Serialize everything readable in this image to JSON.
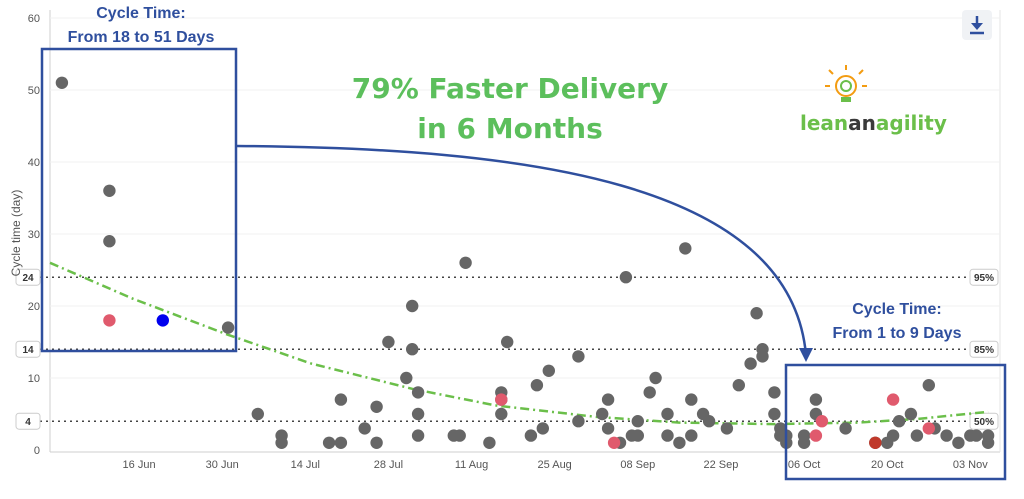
{
  "chart_data": {
    "type": "scatter",
    "ylabel": "Cycle time (day)",
    "ylim": [
      0,
      60
    ],
    "y_ticks": [
      "0",
      "10",
      "20",
      "30",
      "40",
      "50",
      "60"
    ],
    "x_ticks": [
      "16 Jun",
      "30 Jun",
      "14 Jul",
      "28 Jul",
      "11 Aug",
      "25 Aug",
      "08 Sep",
      "22 Sep",
      "06 Oct",
      "20 Oct",
      "03 Nov"
    ],
    "x_tick_dates": [
      "2023-06-16",
      "2023-06-30",
      "2023-07-14",
      "2023-07-28",
      "2023-08-11",
      "2023-08-25",
      "2023-09-08",
      "2023-09-22",
      "2023-10-06",
      "2023-10-20",
      "2023-11-03"
    ],
    "xlim": [
      "2023-06-01",
      "2023-11-08"
    ],
    "percentiles": [
      {
        "label": "95%",
        "value": 24,
        "badge": "24"
      },
      {
        "label": "85%",
        "value": 14,
        "badge": "14"
      },
      {
        "label": "50%",
        "value": 4,
        "badge": "4"
      }
    ],
    "series": [
      {
        "color": "#666666",
        "points": [
          [
            "2023-06-03",
            51
          ],
          [
            "2023-06-11",
            36
          ],
          [
            "2023-06-11",
            29
          ],
          [
            "2023-07-01",
            17
          ],
          [
            "2023-07-06",
            5
          ],
          [
            "2023-07-10",
            2
          ],
          [
            "2023-07-10",
            1
          ],
          [
            "2023-07-18",
            1
          ],
          [
            "2023-07-20",
            1
          ],
          [
            "2023-07-20",
            7
          ],
          [
            "2023-07-24",
            3
          ],
          [
            "2023-07-26",
            1
          ],
          [
            "2023-07-26",
            6
          ],
          [
            "2023-07-28",
            15
          ],
          [
            "2023-07-31",
            10
          ],
          [
            "2023-08-01",
            20
          ],
          [
            "2023-08-01",
            14
          ],
          [
            "2023-08-02",
            8
          ],
          [
            "2023-08-02",
            5
          ],
          [
            "2023-08-02",
            2
          ],
          [
            "2023-08-08",
            2
          ],
          [
            "2023-08-09",
            2
          ],
          [
            "2023-08-10",
            26
          ],
          [
            "2023-08-14",
            1
          ],
          [
            "2023-08-16",
            8
          ],
          [
            "2023-08-16",
            7
          ],
          [
            "2023-08-16",
            5
          ],
          [
            "2023-08-17",
            15
          ],
          [
            "2023-08-21",
            2
          ],
          [
            "2023-08-22",
            9
          ],
          [
            "2023-08-23",
            3
          ],
          [
            "2023-08-24",
            11
          ],
          [
            "2023-08-29",
            4
          ],
          [
            "2023-08-29",
            13
          ],
          [
            "2023-09-02",
            5
          ],
          [
            "2023-09-03",
            7
          ],
          [
            "2023-09-03",
            3
          ],
          [
            "2023-09-05",
            1
          ],
          [
            "2023-09-06",
            24
          ],
          [
            "2023-09-07",
            2
          ],
          [
            "2023-09-08",
            2
          ],
          [
            "2023-09-08",
            4
          ],
          [
            "2023-09-10",
            8
          ],
          [
            "2023-09-11",
            10
          ],
          [
            "2023-09-13",
            5
          ],
          [
            "2023-09-13",
            2
          ],
          [
            "2023-09-15",
            1
          ],
          [
            "2023-09-16",
            28
          ],
          [
            "2023-09-17",
            7
          ],
          [
            "2023-09-17",
            2
          ],
          [
            "2023-09-19",
            5
          ],
          [
            "2023-09-20",
            4
          ],
          [
            "2023-09-23",
            3
          ],
          [
            "2023-09-25",
            9
          ],
          [
            "2023-09-27",
            12
          ],
          [
            "2023-09-28",
            19
          ],
          [
            "2023-09-29",
            14
          ],
          [
            "2023-09-29",
            13
          ],
          [
            "2023-10-01",
            5
          ],
          [
            "2023-10-01",
            8
          ],
          [
            "2023-10-02",
            3
          ],
          [
            "2023-10-02",
            2
          ],
          [
            "2023-10-03",
            1
          ],
          [
            "2023-10-03",
            2
          ],
          [
            "2023-10-06",
            1
          ],
          [
            "2023-10-06",
            2
          ],
          [
            "2023-10-08",
            7
          ],
          [
            "2023-10-08",
            5
          ],
          [
            "2023-10-13",
            3
          ],
          [
            "2023-10-18",
            1
          ],
          [
            "2023-10-20",
            1
          ],
          [
            "2023-10-21",
            2
          ],
          [
            "2023-10-22",
            4
          ],
          [
            "2023-10-24",
            5
          ],
          [
            "2023-10-25",
            2
          ],
          [
            "2023-10-27",
            9
          ],
          [
            "2023-10-28",
            3
          ],
          [
            "2023-10-30",
            2
          ],
          [
            "2023-11-01",
            1
          ],
          [
            "2023-11-03",
            2
          ],
          [
            "2023-11-04",
            2
          ],
          [
            "2023-11-06",
            2
          ],
          [
            "2023-11-06",
            1
          ]
        ]
      },
      {
        "color": "#e05a6d",
        "points": [
          [
            "2023-06-11",
            18
          ],
          [
            "2023-08-16",
            7
          ],
          [
            "2023-09-04",
            1
          ],
          [
            "2023-10-08",
            2
          ],
          [
            "2023-10-09",
            4
          ],
          [
            "2023-10-21",
            7
          ],
          [
            "2023-10-27",
            3
          ]
        ]
      },
      {
        "color": "#0000ee",
        "points": [
          [
            "2023-06-20",
            18
          ]
        ]
      },
      {
        "color": "#c0392b",
        "points": [
          [
            "2023-10-18",
            1
          ]
        ]
      }
    ],
    "trend": {
      "color": "#6bbf4a",
      "points": [
        [
          "2023-06-01",
          26
        ],
        [
          "2023-06-15",
          21
        ],
        [
          "2023-07-01",
          16
        ],
        [
          "2023-07-15",
          12
        ],
        [
          "2023-08-01",
          8.5
        ],
        [
          "2023-08-15",
          6.2
        ],
        [
          "2023-09-01",
          4.6
        ],
        [
          "2023-09-15",
          3.8
        ],
        [
          "2023-10-01",
          3.6
        ],
        [
          "2023-10-15",
          3.8
        ],
        [
          "2023-10-25",
          4.3
        ],
        [
          "2023-11-06",
          5.3
        ]
      ]
    }
  },
  "annotations": {
    "headline_line1": "79% Faster Delivery",
    "headline_line2": "in 6 Months",
    "before_title": "Cycle Time:",
    "before_range": "From 18 to 51 Days",
    "after_title": "Cycle Time:",
    "after_range": "From 1 to 9 Days"
  },
  "brand": {
    "lean": "lean",
    "an": "an",
    "agility": "agility",
    "color_dark": "#3a3a3a",
    "color_green": "#6bbf4a"
  },
  "toolbar": {
    "download_icon": "download-icon"
  }
}
